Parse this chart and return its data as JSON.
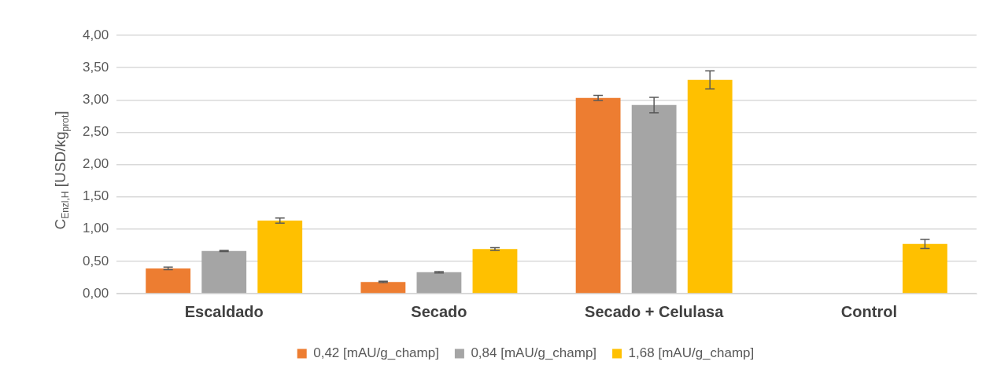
{
  "chart_data": {
    "type": "bar",
    "ylabel": "C$_{Enzl,H}$ [USD/kg$_{prot}$]",
    "categories": [
      "Escaldado",
      "Secado",
      "Secado + Celulasa",
      "Control"
    ],
    "series": [
      {
        "name": "0,42 [mAU/g_champ]",
        "color": "#ed7d31",
        "values": [
          0.39,
          0.18,
          3.03,
          null
        ],
        "errors": [
          0.02,
          0.01,
          0.04,
          null
        ]
      },
      {
        "name": "0,84 [mAU/g_champ]",
        "color": "#a5a5a5",
        "values": [
          0.66,
          0.33,
          2.92,
          null
        ],
        "errors": [
          0.01,
          0.01,
          0.12,
          null
        ]
      },
      {
        "name": "1,68 [mAU/g_champ]",
        "color": "#ffc000",
        "values": [
          1.13,
          0.69,
          3.31,
          0.77
        ],
        "errors": [
          0.04,
          0.02,
          0.14,
          0.07
        ]
      }
    ],
    "ylim": [
      0,
      4
    ],
    "yticks": [
      {
        "value": 0,
        "label": "0,00"
      },
      {
        "value": 0.5,
        "label": "0,50"
      },
      {
        "value": 1,
        "label": "1,00"
      },
      {
        "value": 1.5,
        "label": "1,50"
      },
      {
        "value": 2,
        "label": "2,00"
      },
      {
        "value": 2.5,
        "label": "2,50"
      },
      {
        "value": 3,
        "label": "3,00"
      },
      {
        "value": 3.5,
        "label": "3,50"
      },
      {
        "value": 4,
        "label": "4,00"
      }
    ],
    "grid": "y",
    "legend": "bottom"
  }
}
